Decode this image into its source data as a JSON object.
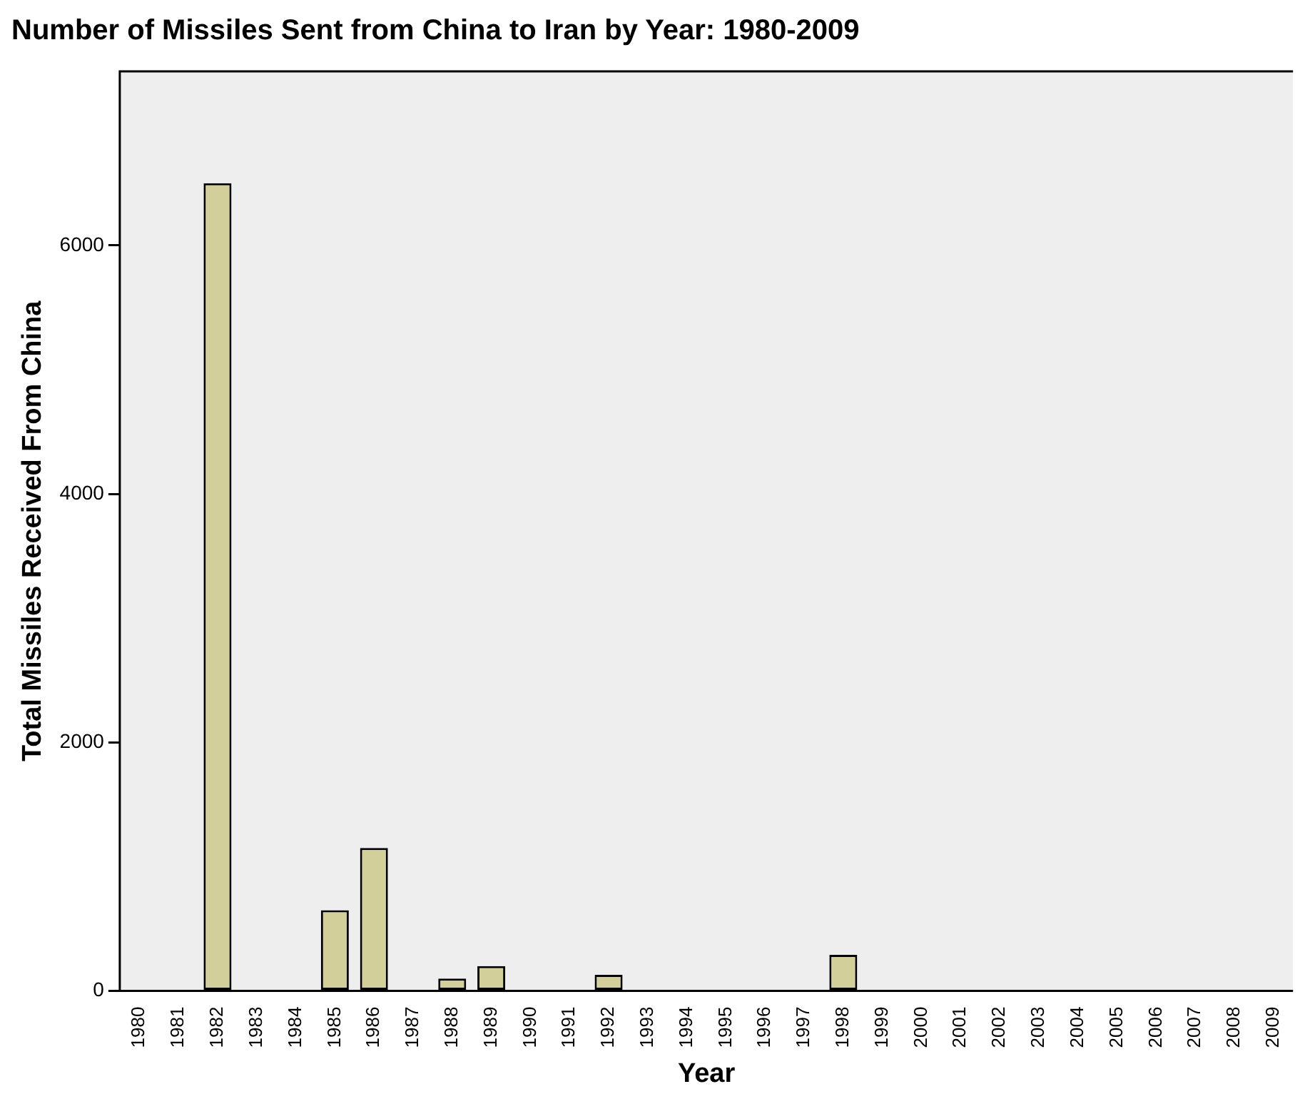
{
  "chart_data": {
    "type": "bar",
    "title": "Number of Missiles Sent from China to Iran by Year: 1980-2009",
    "xlabel": "Year",
    "ylabel": "Total Missiles Received From China",
    "categories": [
      "1980",
      "1981",
      "1982",
      "1983",
      "1984",
      "1985",
      "1986",
      "1987",
      "1988",
      "1989",
      "1990",
      "1991",
      "1992",
      "1993",
      "1994",
      "1995",
      "1996",
      "1997",
      "1998",
      "1999",
      "2000",
      "2001",
      "2002",
      "2003",
      "2004",
      "2005",
      "2006",
      "2007",
      "2008",
      "2009"
    ],
    "values": [
      0,
      0,
      6500,
      0,
      0,
      650,
      1150,
      0,
      100,
      200,
      0,
      0,
      130,
      0,
      0,
      0,
      0,
      0,
      290,
      0,
      0,
      0,
      0,
      0,
      0,
      0,
      0,
      0,
      0,
      0
    ],
    "color": "#d3cf9b",
    "ylim": [
      0,
      7400
    ],
    "yticks": [
      0,
      2000,
      4000,
      6000
    ],
    "grid": false,
    "legend": false
  }
}
